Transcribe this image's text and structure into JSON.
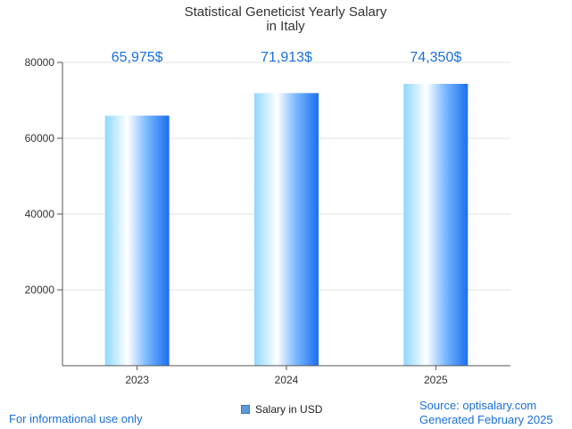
{
  "chart_data": {
    "type": "bar",
    "title": [
      "Statistical Geneticist Yearly Salary",
      "in Italy"
    ],
    "categories": [
      "2023",
      "2024",
      "2025"
    ],
    "series": [
      {
        "name": "Salary in USD",
        "values": [
          65975,
          71913,
          74350
        ]
      }
    ],
    "data_labels": [
      "65,975$",
      "71,913$",
      "74,350$"
    ],
    "y_ticks": [
      20000,
      40000,
      60000,
      80000
    ],
    "ylim": [
      0,
      80000
    ],
    "grid": true,
    "legend_position": "bottom-center",
    "bar_colors": {
      "light": "#ffffff",
      "mid": "#7fd0ff",
      "dark": "#1a6ff0"
    }
  },
  "footer": {
    "disclaimer": "For informational use only",
    "source": "Source: optisalary.com",
    "generated": "Generated February 2025"
  },
  "legend": {
    "label": "Salary in USD"
  }
}
